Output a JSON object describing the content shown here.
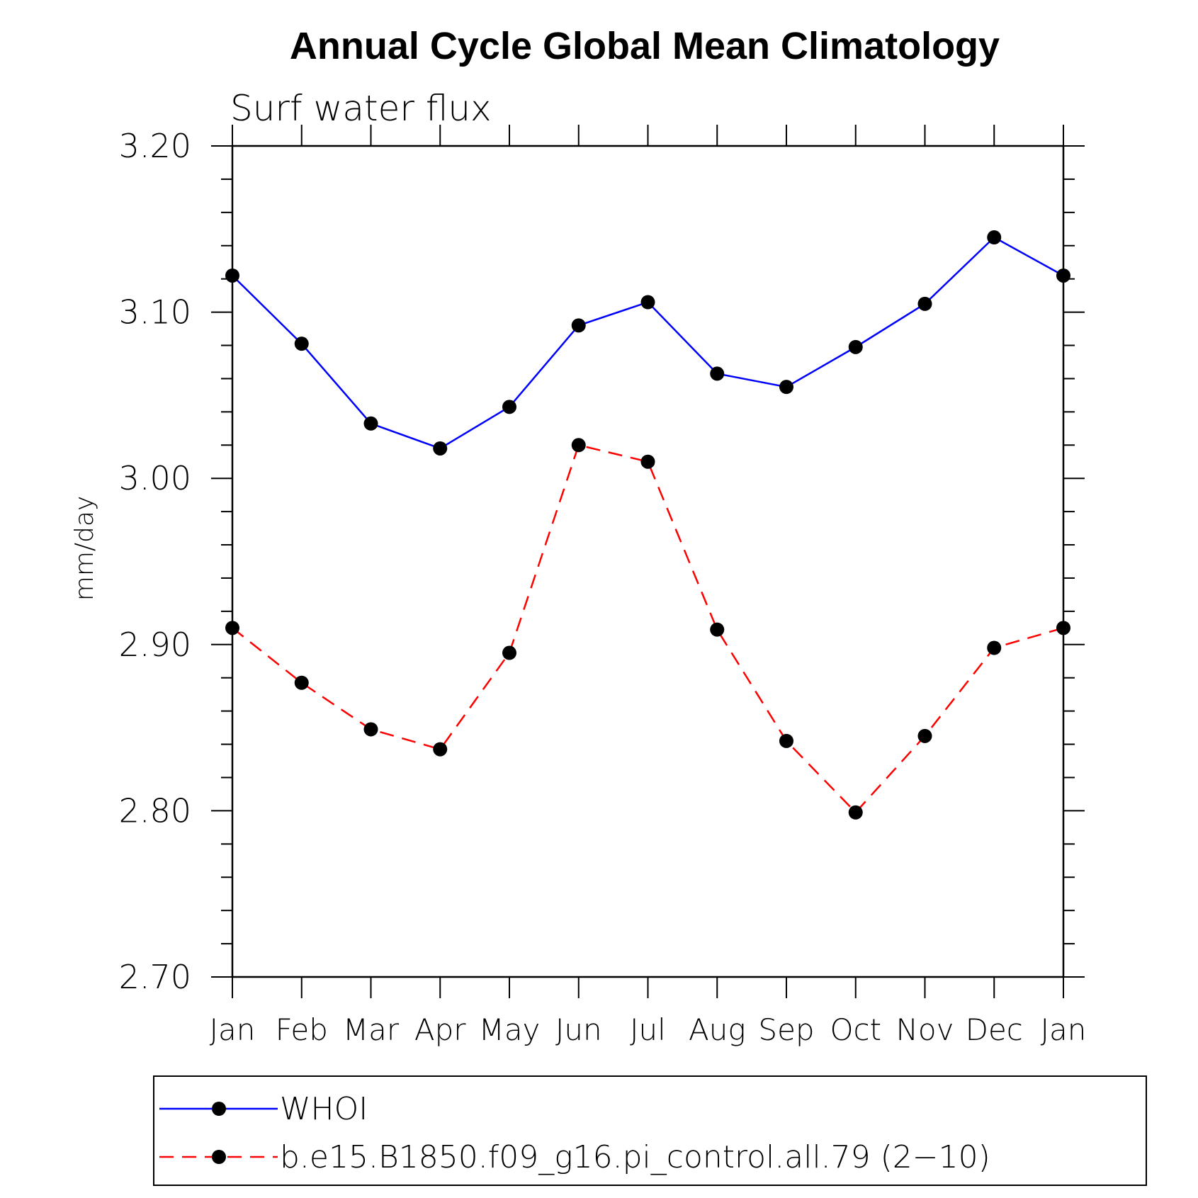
{
  "chart_data": {
    "type": "line",
    "title": "Annual Cycle Global Mean Climatology",
    "subtitle": "Surf water flux",
    "ylabel": "mm/day",
    "xlabel": "",
    "categories": [
      "Jan",
      "Feb",
      "Mar",
      "Apr",
      "May",
      "Jun",
      "Jul",
      "Aug",
      "Sep",
      "Oct",
      "Nov",
      "Dec",
      "Jan"
    ],
    "ylim": [
      2.7,
      3.2
    ],
    "yticks": [
      "2.70",
      "2.80",
      "2.90",
      "3.00",
      "3.10",
      "3.20"
    ],
    "legend_position": "bottom",
    "grid": false,
    "series": [
      {
        "name": "WHOI",
        "color": "#0000ff",
        "dash": "solid",
        "values": [
          3.122,
          3.081,
          3.033,
          3.018,
          3.043,
          3.092,
          3.106,
          3.063,
          3.055,
          3.079,
          3.105,
          3.145,
          3.122
        ]
      },
      {
        "name": "b.e15.B1850.f09_g16.pi_control.all.79 (2−10)",
        "color": "#ff0000",
        "dash": "dashed",
        "values": [
          2.91,
          2.877,
          2.849,
          2.837,
          2.895,
          3.02,
          3.01,
          2.909,
          2.842,
          2.799,
          2.845,
          2.898,
          2.91
        ]
      }
    ]
  }
}
